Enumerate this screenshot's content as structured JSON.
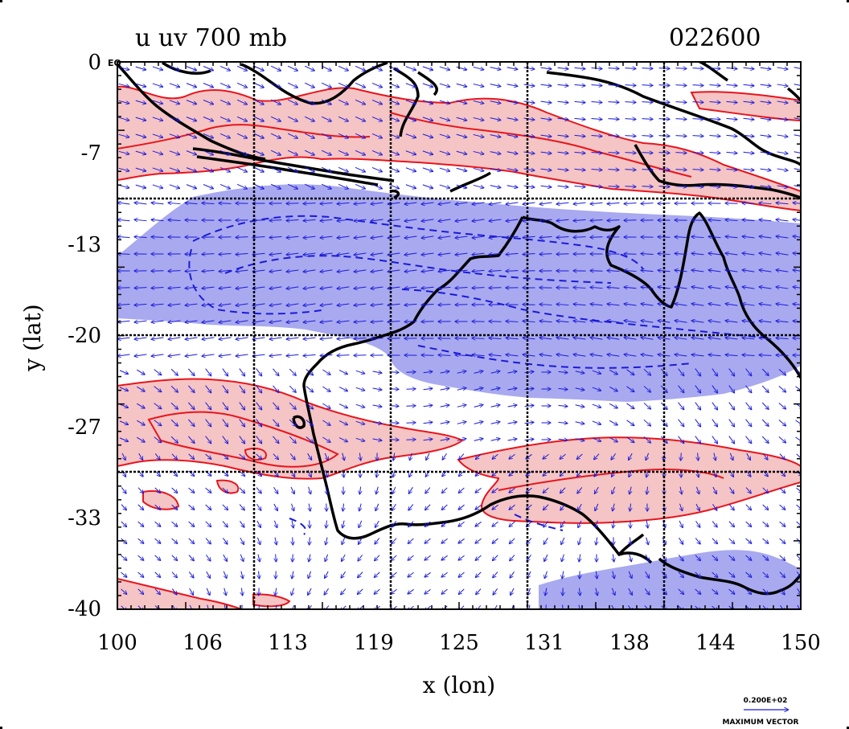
{
  "chart_data": {
    "type": "contour",
    "title": "u uv 700 mb",
    "title_right": "022600",
    "xlabel": "x (lon)",
    "ylabel": "y (lat)",
    "x_ticks": [
      "100",
      "106",
      "113",
      "119",
      "125",
      "131",
      "138",
      "144",
      "150"
    ],
    "y_ticks": [
      "0",
      "-7",
      "-13",
      "-20",
      "-27",
      "-33",
      "-40"
    ],
    "xlim": [
      100,
      150
    ],
    "ylim": [
      -40,
      0
    ],
    "equator_label": "EQ",
    "legend": {
      "magnitude": "0.200E+02",
      "label": "MAXIMUM VECTOR"
    },
    "fields": {
      "positive_u": {
        "fill": "#f5c4c4",
        "contour": "#e8141c",
        "regions": [
          "0 to -10",
          "-24 to -31",
          "-28 to -34",
          "-38 to -40"
        ]
      },
      "negative_u": {
        "fill": "#a9a9f0",
        "contour": "#1a1ad9",
        "regions": [
          "-10 to -22",
          "-14 to -26",
          "-36 to -40"
        ]
      }
    },
    "grid": true,
    "vectors": {
      "color": "#1a1ad9"
    },
    "coast_color": "#000000"
  }
}
